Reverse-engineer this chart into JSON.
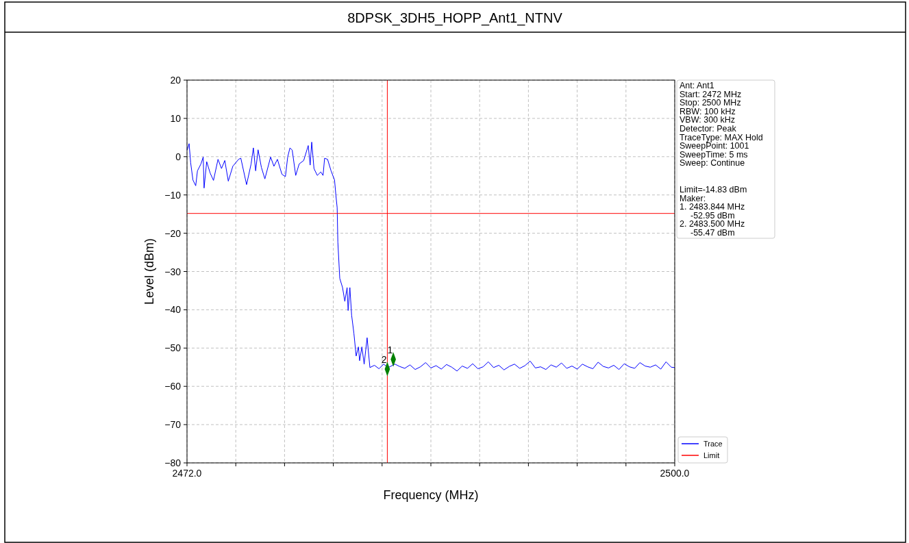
{
  "chart_data": {
    "type": "line",
    "title": "8DPSK_3DH5_HOPP_Ant1_NTNV",
    "xlabel": "Frequency (MHz)",
    "ylabel": "Level (dBm)",
    "xlim": [
      2472,
      2500
    ],
    "ylim": [
      -80,
      20
    ],
    "xticks": [
      {
        "value": 2472,
        "label": "2472.0"
      },
      {
        "value": 2474.8,
        "label": null
      },
      {
        "value": 2477.6,
        "label": null
      },
      {
        "value": 2480.4,
        "label": null
      },
      {
        "value": 2483.2,
        "label": null
      },
      {
        "value": 2486,
        "label": null
      },
      {
        "value": 2488.8,
        "label": null
      },
      {
        "value": 2491.6,
        "label": null
      },
      {
        "value": 2494.4,
        "label": null
      },
      {
        "value": 2497.2,
        "label": null
      },
      {
        "value": 2500,
        "label": "2500.0"
      }
    ],
    "yticks": [
      -80,
      -70,
      -60,
      -50,
      -40,
      -30,
      -20,
      -10,
      0,
      10,
      20
    ],
    "grid": true,
    "legend": "bottom right",
    "line_style": "solid",
    "ref_lines": [
      {
        "axis": "x",
        "value": 2483.5,
        "color": "#ff0000"
      }
    ],
    "annotations": [
      "Ant: Ant1",
      "Start: 2472 MHz",
      "Stop: 2500 MHz",
      "RBW: 100 kHz",
      "VBW: 300 kHz",
      "Detector: Peak",
      "TraceType: MAX Hold",
      "SweepPoint: 1001",
      "SweepTime: 5 ms",
      "Sweep: Continue",
      "Limit=-14.83 dBm",
      "Maker:",
      "1. 2483.844 MHz",
      "-52.95 dBm",
      "2. 2483.500 MHz",
      "-55.47 dBm",
      {
        "text": "1",
        "x": 2483.844,
        "y": -52.95
      },
      {
        "text": "2",
        "x": 2483.5,
        "y": -55.47
      }
    ],
    "series": [
      {
        "name": "Trace",
        "color": "#0000ff",
        "marker": "none",
        "x": [
          2472.01,
          2472.12,
          2472.21,
          2472.34,
          2472.5,
          2472.6,
          2472.8,
          2472.93,
          2472.98,
          2473.13,
          2473.33,
          2473.52,
          2473.78,
          2473.98,
          2474.17,
          2474.37,
          2474.63,
          2474.96,
          2475.09,
          2475.42,
          2475.68,
          2475.81,
          2475.94,
          2476.08,
          2476.27,
          2476.47,
          2476.8,
          2476.99,
          2477.19,
          2477.45,
          2477.65,
          2477.78,
          2477.91,
          2478.04,
          2478.24,
          2478.44,
          2478.7,
          2478.96,
          2479.07,
          2479.16,
          2479.29,
          2479.48,
          2479.68,
          2479.81,
          2479.9,
          2480.07,
          2480.27,
          2480.47,
          2480.55,
          2480.62,
          2480.66,
          2480.77,
          2480.93,
          2481.06,
          2481.19,
          2481.25,
          2481.35,
          2481.45,
          2481.58,
          2481.71,
          2481.84,
          2481.91,
          2482.04,
          2482.17,
          2482.34,
          2482.5,
          2482.76,
          2483.02,
          2483.29,
          2483.55,
          2483.94,
          2484.2,
          2484.5,
          2484.8,
          2485.1,
          2485.4,
          2485.7,
          2486.0,
          2486.3,
          2486.6,
          2486.9,
          2487.2,
          2487.5,
          2487.8,
          2488.1,
          2488.4,
          2488.7,
          2489.0,
          2489.3,
          2489.6,
          2489.9,
          2490.2,
          2490.5,
          2490.8,
          2491.1,
          2491.4,
          2491.7,
          2492.0,
          2492.3,
          2492.6,
          2492.9,
          2493.2,
          2493.5,
          2493.8,
          2494.1,
          2494.4,
          2494.7,
          2495.0,
          2495.3,
          2495.6,
          2495.9,
          2496.2,
          2496.5,
          2496.8,
          2497.1,
          2497.4,
          2497.7,
          2498.0,
          2498.3,
          2498.6,
          2498.9,
          2499.2,
          2499.5,
          2499.8,
          2500.0
        ],
        "values": [
          1.7,
          3.4,
          -1.6,
          -6.1,
          -7.6,
          -3.7,
          -1.9,
          -0.1,
          -8.2,
          -1.3,
          -4.3,
          -6.2,
          -0.7,
          -3.1,
          -1.0,
          -6.4,
          -2.5,
          -0.7,
          -0.4,
          -7.3,
          -1.9,
          2.3,
          -3.7,
          1.8,
          -2.8,
          -5.8,
          -0.1,
          -2.5,
          -0.7,
          -4.6,
          -5.2,
          -0.1,
          2.3,
          1.7,
          -4.9,
          -1.9,
          -1.0,
          2.9,
          -2.2,
          3.8,
          -3.1,
          -4.9,
          -4.0,
          -4.9,
          -0.4,
          -0.7,
          -3.7,
          -6.1,
          -10.2,
          -13.3,
          -22.3,
          -31.8,
          -34.2,
          -37.8,
          -34.2,
          -40.2,
          -34.2,
          -41.4,
          -46.1,
          -52.1,
          -49.7,
          -53.3,
          -49.7,
          -54.2,
          -47.3,
          -55.1,
          -54.5,
          -55.4,
          -54.2,
          -55.1,
          -54.2,
          -54.8,
          -55.3,
          -54.4,
          -55.6,
          -54.9,
          -53.8,
          -55.2,
          -54.6,
          -55.5,
          -54.3,
          -55.0,
          -56.0,
          -54.7,
          -55.3,
          -54.1,
          -55.4,
          -54.9,
          -53.6,
          -55.1,
          -54.5,
          -55.7,
          -54.8,
          -54.2,
          -55.3,
          -54.6,
          -53.4,
          -55.2,
          -54.9,
          -55.6,
          -54.4,
          -55.0,
          -53.9,
          -55.3,
          -54.7,
          -55.5,
          -54.2,
          -54.9,
          -55.4,
          -53.7,
          -54.8,
          -55.2,
          -54.5,
          -55.6,
          -54.1,
          -54.9,
          -55.3,
          -53.8,
          -54.7,
          -55.0,
          -54.4,
          -55.5,
          -53.6,
          -55.0,
          -55.1
        ]
      },
      {
        "name": "Limit",
        "type": "line",
        "color": "#ff0000",
        "marker": "none",
        "x": [
          2472,
          2500
        ],
        "values": [
          -14.83,
          -14.83
        ]
      },
      {
        "type": "scatter",
        "color": "#008000",
        "marker": "diamond",
        "x": [
          2483.844,
          2483.5
        ],
        "values": [
          -52.95,
          -55.47
        ]
      }
    ]
  }
}
